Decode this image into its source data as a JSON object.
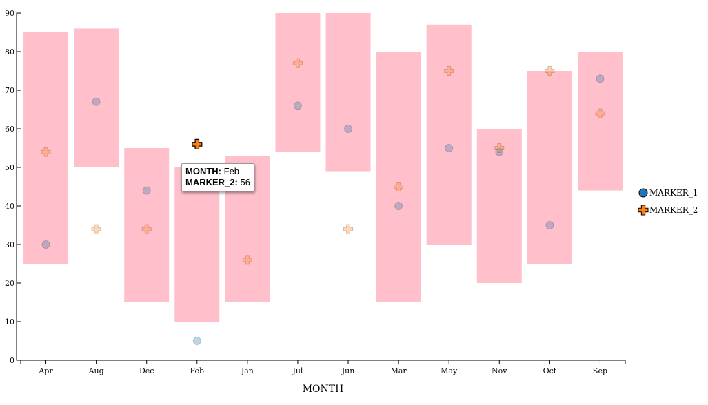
{
  "chart_data": {
    "type": "scatter",
    "xlabel": "MONTH",
    "ylabel": "",
    "ylim": [
      0,
      90
    ],
    "yticks": [
      0,
      10,
      20,
      30,
      40,
      50,
      60,
      70,
      80,
      90
    ],
    "categories": [
      "Apr",
      "Aug",
      "Dec",
      "Feb",
      "Jan",
      "Jul",
      "Jun",
      "Mar",
      "May",
      "Nov",
      "Oct",
      "Sep"
    ],
    "ranges": [
      [
        25,
        85
      ],
      [
        50,
        86
      ],
      [
        15,
        55
      ],
      [
        10,
        50
      ],
      [
        15,
        53
      ],
      [
        54,
        90
      ],
      [
        49,
        90
      ],
      [
        15,
        80
      ],
      [
        30,
        87
      ],
      [
        20,
        60
      ],
      [
        25,
        75
      ],
      [
        44,
        80
      ]
    ],
    "series": [
      {
        "name": "MARKER_1",
        "marker": "circle",
        "color": "#1f77b4",
        "values": [
          30,
          67,
          44,
          5,
          null,
          66,
          60,
          40,
          55,
          54,
          35,
          73
        ]
      },
      {
        "name": "MARKER_2",
        "marker": "plus",
        "color": "#ff7f0e",
        "values": [
          54,
          34,
          34,
          56,
          26,
          77,
          34,
          45,
          75,
          55,
          75,
          64
        ]
      }
    ],
    "range_color": "#ffc0cb",
    "legend_position": "right",
    "grid": false,
    "highlight": {
      "category_index": 3,
      "series_index": 1
    }
  },
  "tooltip": {
    "month_label": "MONTH:",
    "month_value": "Feb",
    "marker_label": "MARKER_2:",
    "marker_value": "56"
  }
}
